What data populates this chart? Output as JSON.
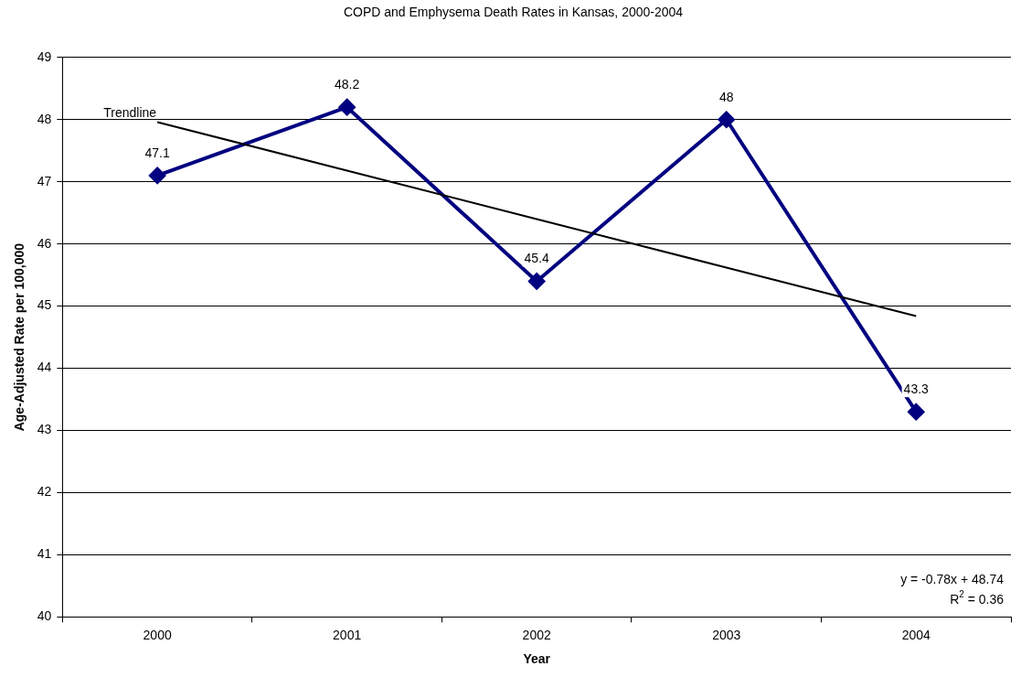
{
  "chart_data": {
    "type": "line",
    "title": "COPD and Emphysema Death Rates in Kansas, 2000-2004",
    "xlabel": "Year",
    "ylabel": "Age-Adjusted Rate per 100,000",
    "categories": [
      "2000",
      "2001",
      "2002",
      "2003",
      "2004"
    ],
    "series": [
      {
        "color": "#000080",
        "values": [
          47.1,
          48.2,
          45.4,
          48,
          43.3
        ],
        "value_labels": [
          "47.1",
          "48.2",
          "45.4",
          "48",
          "43.3"
        ],
        "marker": "diamond"
      },
      {
        "name": "Trendline",
        "type": "line",
        "color": "#000000",
        "values": [
          47.96,
          47.18,
          46.4,
          45.62,
          44.84
        ],
        "marker": "none"
      }
    ],
    "ylim": [
      40,
      49
    ],
    "yticks": [
      40,
      41,
      42,
      43,
      44,
      45,
      46,
      47,
      48,
      49
    ],
    "grid": "y",
    "legend": false,
    "line_style": "solid",
    "annotations": [
      "y = -0.78x + 48.74",
      "R$^{2}$ = 0.36"
    ]
  }
}
